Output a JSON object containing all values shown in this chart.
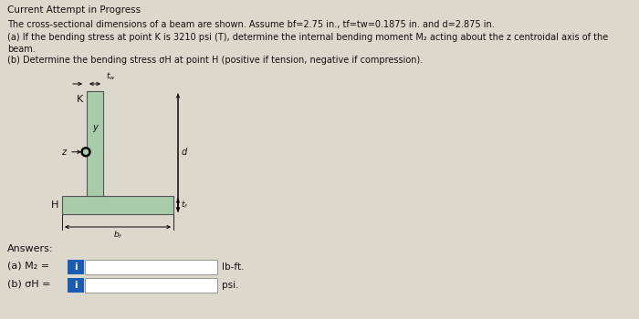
{
  "title_line": "Current Attempt in Progress",
  "text_line1": "The cross-sectional dimensions of a beam are shown. Assume bf=2.75 in., tf=tw=0.1875 in. and d=2.875 in.",
  "text_line2": "(a) If the bending stress at point K is 3210 psi (T), determine the internal bending moment M₂ acting about the z centroidal axis of the",
  "text_line3": "beam.",
  "text_line4": "(b) Determine the bending stress σH at point H (positive if tension, negative if compression).",
  "beam_color": "#a8ccaa",
  "beam_edge_color": "#555555",
  "answer_label1": "(a) M₂ =",
  "answer_label2": "(b) σH =",
  "unit1": "lb-ft.",
  "unit2": "psi.",
  "answers_label": "Answers:",
  "bg_color": "#ddd8cc"
}
